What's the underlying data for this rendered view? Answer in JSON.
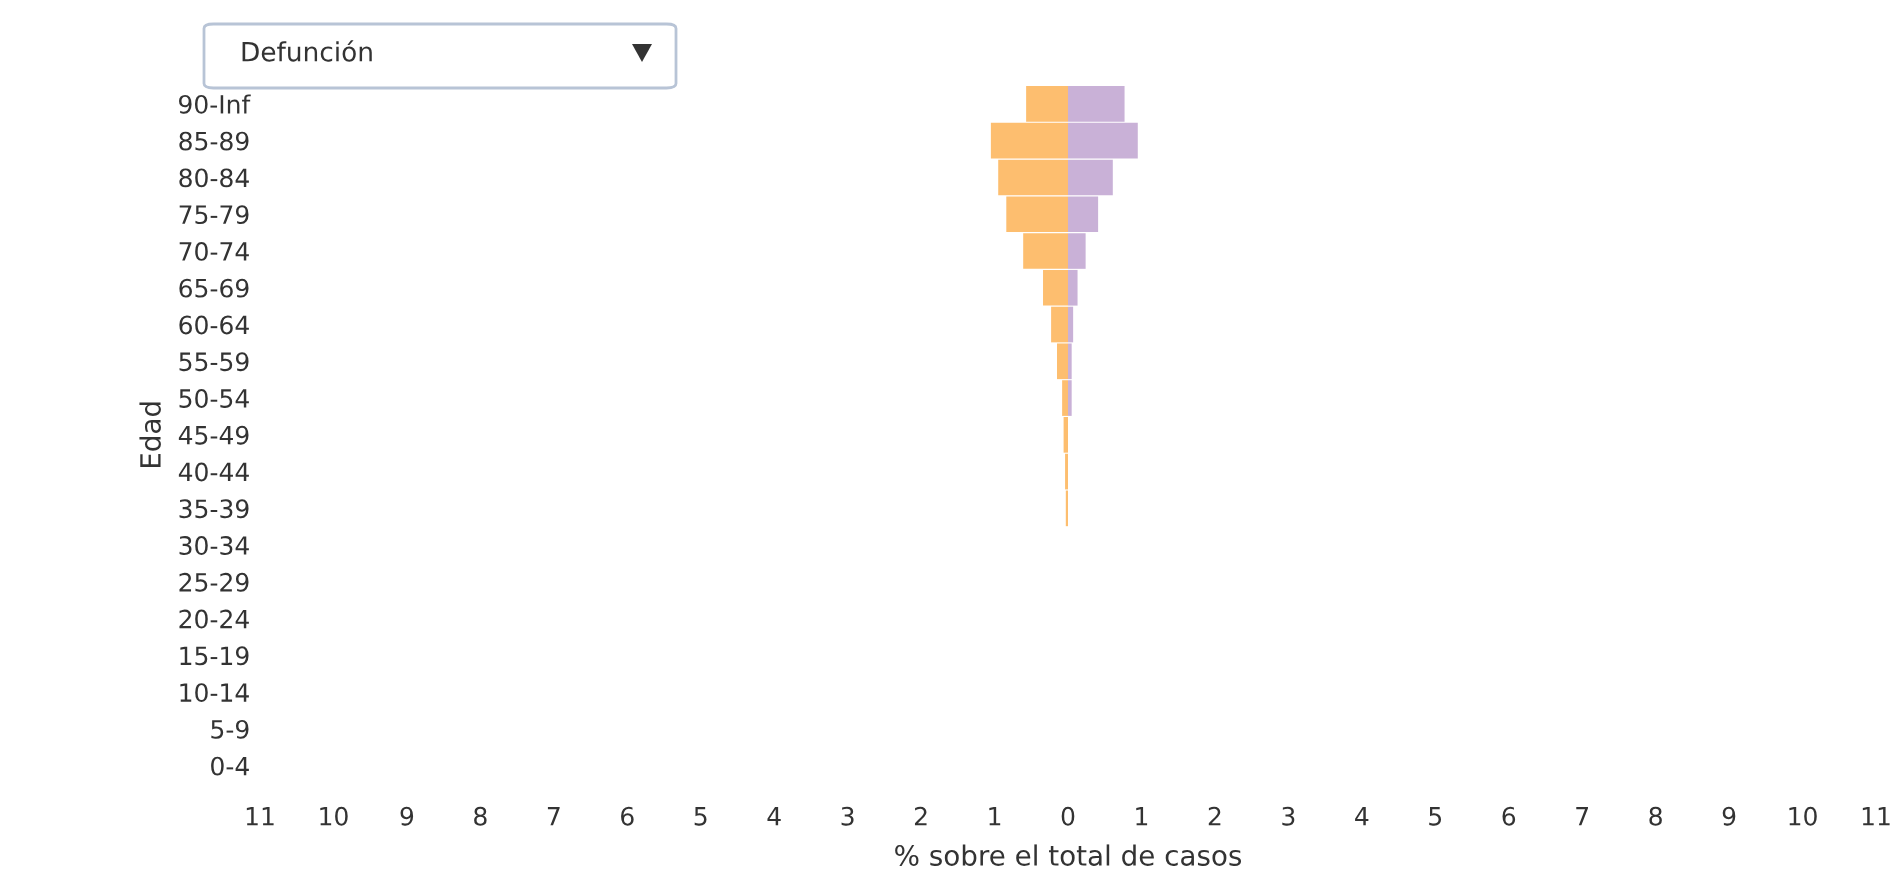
{
  "chart_data": {
    "type": "bar",
    "orientation": "horizontal",
    "categories": [
      "90-Inf",
      "85-89",
      "80-84",
      "75-79",
      "70-74",
      "65-69",
      "60-64",
      "55-59",
      "50-54",
      "45-49",
      "40-44",
      "35-39",
      "30-34",
      "25-29",
      "20-24",
      "15-19",
      "10-14",
      "5-9",
      "0-4"
    ],
    "series": [
      {
        "color": "#fdbe6f",
        "values": [
          -0.57,
          -1.05,
          -0.95,
          -0.84,
          -0.61,
          -0.34,
          -0.23,
          -0.15,
          -0.08,
          -0.06,
          -0.04,
          -0.03,
          null,
          null,
          null,
          null,
          null,
          null,
          null
        ]
      },
      {
        "color": "#c9b1d7",
        "values": [
          0.77,
          0.95,
          0.61,
          0.41,
          0.24,
          0.13,
          0.07,
          0.05,
          0.05,
          null,
          null,
          null,
          null,
          null,
          null,
          null,
          null,
          null,
          null
        ]
      }
    ],
    "xlim": [
      -11,
      11
    ],
    "xticks": [
      {
        "value": -11,
        "label": "11"
      },
      {
        "value": -10,
        "label": "10"
      },
      {
        "value": -9,
        "label": "9"
      },
      {
        "value": -8,
        "label": "8"
      },
      {
        "value": -7,
        "label": "7"
      },
      {
        "value": -6,
        "label": "6"
      },
      {
        "value": -5,
        "label": "5"
      },
      {
        "value": -4,
        "label": "4"
      },
      {
        "value": -3,
        "label": "3"
      },
      {
        "value": -2,
        "label": "2"
      },
      {
        "value": -1,
        "label": "1"
      },
      0,
      1,
      2,
      3,
      4,
      5,
      6,
      7,
      8,
      9,
      10,
      11
    ],
    "xlabel": "% sobre el total de casos",
    "ylabel": "Edad",
    "grid": false,
    "legend": false,
    "annotations": [
      "Defunción"
    ]
  }
}
